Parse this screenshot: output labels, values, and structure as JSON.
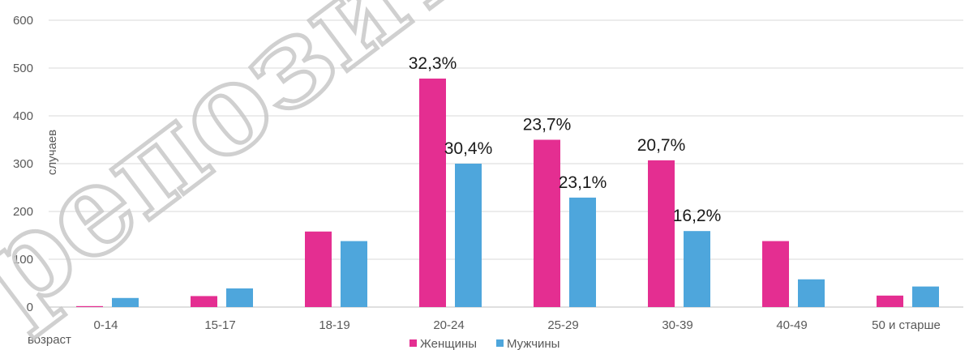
{
  "chart_data": {
    "type": "bar",
    "ylabel": "случаев",
    "xlabel": "возраст",
    "ylim": [
      0,
      600
    ],
    "yticks": [
      0,
      100,
      200,
      300,
      400,
      500,
      600
    ],
    "grid": true,
    "legend_position": "bottom",
    "categories": [
      "0-14",
      "15-17",
      "18-19",
      "20-24",
      "25-29",
      "30-39",
      "40-49",
      "50 и старше"
    ],
    "series": [
      {
        "name": "Женщины",
        "color": "#e42e91",
        "values": [
          2,
          23,
          158,
          478,
          350,
          307,
          138,
          24
        ],
        "labels": [
          "",
          "",
          "",
          "32,3%",
          "23,7%",
          "20,7%",
          "",
          ""
        ]
      },
      {
        "name": "Мужчины",
        "color": "#4ea6dc",
        "values": [
          19,
          39,
          138,
          300,
          229,
          159,
          58,
          43
        ],
        "labels": [
          "",
          "",
          "",
          "30,4%",
          "23,1%",
          "16,2%",
          "",
          ""
        ]
      }
    ]
  },
  "watermark": {
    "text": "репозитор",
    "color": "#c8c8c8"
  }
}
